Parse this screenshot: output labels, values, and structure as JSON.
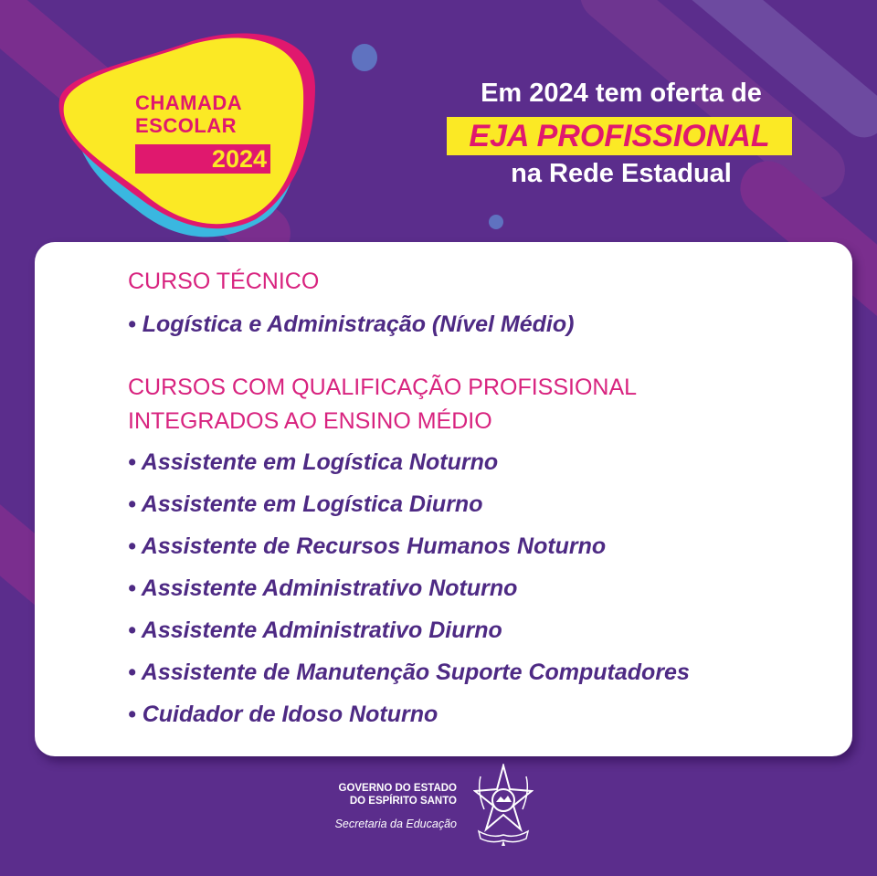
{
  "badge": {
    "line1": "CHAMADA",
    "line2": "ESCOLAR",
    "year": "2024"
  },
  "headline": {
    "line1": "Em 2024 tem oferta de",
    "highlight": "EJA PROFISSIONAL",
    "line3": "na Rede Estadual"
  },
  "colors": {
    "background": "#5b2d8c",
    "pink": "#e0186e",
    "yellow": "#fbe925",
    "cyan": "#3ab7e0",
    "item_text": "#4e2a84"
  },
  "sections": [
    {
      "title": "CURSO TÉCNICO",
      "items": [
        "• Logística e Administração (Nível Médio)"
      ]
    },
    {
      "title_lines": [
        "CURSOS COM QUALIFICAÇÃO PROFISSIONAL",
        "INTEGRADOS AO ENSINO MÉDIO"
      ],
      "items": [
        "• Assistente em Logística Noturno",
        "• Assistente em Logística Diurno",
        "• Assistente de Recursos Humanos Noturno",
        "• Assistente Administrativo Noturno",
        "• Assistente Administrativo Diurno",
        "• Assistente de Manutenção Suporte Computadores",
        "• Cuidador de Idoso Noturno"
      ]
    }
  ],
  "footer": {
    "gov_line1": "GOVERNO DO ESTADO",
    "gov_line2": "DO ESPÍRITO SANTO",
    "secretaria": "Secretaria da Educação",
    "logo": "coat-of-arms-espirito-santo"
  }
}
